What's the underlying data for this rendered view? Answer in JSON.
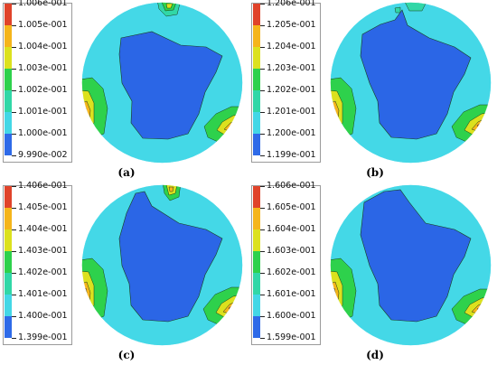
{
  "colors": {
    "level_colors": [
      "#E0432A",
      "#F5B51B",
      "#DCE11E",
      "#2ED14C",
      "#31D7A7",
      "#43D7E6",
      "#2E6AE8"
    ],
    "domain_color": "#44D8E7",
    "core_color": "#2B66E6",
    "contour_line": "#1a3c1a"
  },
  "panels": [
    {
      "caption": "(a)",
      "levels": [
        "1.006e-001",
        "1.005e-001",
        "1.004e-001",
        "1.003e-001",
        "1.002e-001",
        "1.001e-001",
        "1.000e-001",
        "9.990e-002"
      ]
    },
    {
      "caption": "(b)",
      "levels": [
        "1.206e-001",
        "1.205e-001",
        "1.204e-001",
        "1.203e-001",
        "1.202e-001",
        "1.201e-001",
        "1.200e-001",
        "1.199e-001"
      ]
    },
    {
      "caption": "(c)",
      "levels": [
        "1.406e-001",
        "1.405e-001",
        "1.404e-001",
        "1.403e-001",
        "1.402e-001",
        "1.401e-001",
        "1.400e-001",
        "1.399e-001"
      ]
    },
    {
      "caption": "(d)",
      "levels": [
        "1.606e-001",
        "1.605e-001",
        "1.604e-001",
        "1.603e-001",
        "1.602e-001",
        "1.601e-001",
        "1.600e-001",
        "1.599e-001"
      ]
    }
  ]
}
